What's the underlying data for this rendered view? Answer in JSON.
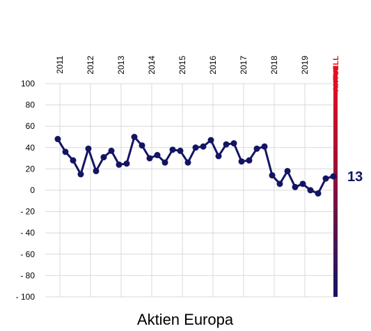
{
  "chart_data": {
    "type": "line",
    "title": "Aktien Europa",
    "categories": [
      "2011",
      null,
      null,
      null,
      "2012",
      null,
      null,
      null,
      "2013",
      null,
      null,
      null,
      "2014",
      null,
      null,
      null,
      "2015",
      null,
      null,
      null,
      "2016",
      null,
      null,
      null,
      "2017",
      null,
      null,
      null,
      "2018",
      null,
      null,
      null,
      "2019",
      null,
      null,
      null,
      "AKTUELL"
    ],
    "series": [
      {
        "name": "Aktien Europa",
        "color": "#141464",
        "values": [
          48,
          36,
          28,
          15,
          39,
          18,
          31,
          37,
          24,
          25,
          50,
          42,
          30,
          33,
          26,
          38,
          37,
          26,
          40,
          41,
          47,
          32,
          43,
          44,
          27,
          28,
          39,
          41,
          14,
          6,
          18,
          3,
          6,
          0,
          -3,
          11,
          13
        ]
      }
    ],
    "ylim": [
      -100,
      100
    ],
    "yticks": [
      {
        "value": -100,
        "label": "- 100"
      },
      {
        "value": -80,
        "label": "- 80"
      },
      {
        "value": -60,
        "label": "- 60"
      },
      {
        "value": -40,
        "label": "- 40"
      },
      {
        "value": -20,
        "label": "- 20"
      },
      0,
      20,
      40,
      60,
      80,
      100
    ],
    "grid": true
  }
}
